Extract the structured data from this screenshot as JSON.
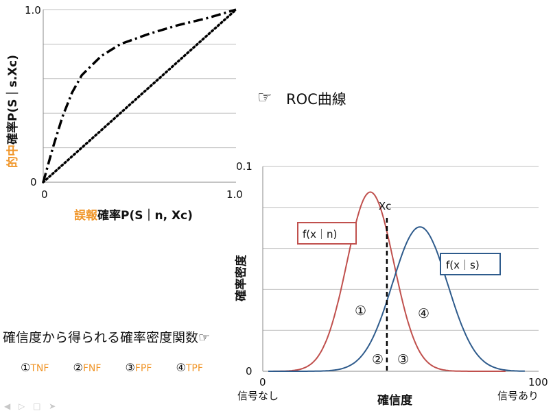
{
  "chart_data": [
    {
      "type": "line",
      "xlim": [
        0,
        1.0
      ],
      "ylim": [
        0,
        1.0
      ],
      "x_ticks": [
        "0",
        "1.0"
      ],
      "y_ticks": [
        "0",
        "1.0"
      ],
      "grid": "horizontal",
      "xlabel_prefix": "誤報",
      "xlabel_rest": "確率P(S｜n, Xc)",
      "ylabel_prefix": "的中",
      "ylabel_rest": "確率P(S｜s.Xc)",
      "series": [
        {
          "style": "dash-dot",
          "color": "#000000",
          "x": [
            0,
            0.05,
            0.1,
            0.15,
            0.2,
            0.3,
            0.4,
            0.55,
            0.7,
            0.85,
            1.0
          ],
          "y": [
            0,
            0.2,
            0.38,
            0.52,
            0.62,
            0.73,
            0.8,
            0.86,
            0.91,
            0.95,
            1.0
          ]
        },
        {
          "style": "dotted",
          "color": "#000000",
          "x": [
            0,
            1.0
          ],
          "y": [
            0,
            1.0
          ]
        }
      ]
    },
    {
      "type": "line",
      "xlim": [
        0,
        100
      ],
      "ylim": [
        0,
        0.1
      ],
      "x_ticks": [
        "0",
        "100"
      ],
      "y_ticks": [
        "0",
        "0.1"
      ],
      "grid": "horizontal",
      "xlabel": "確信度",
      "ylabel": "確率密度",
      "x_left_label": "信号なし",
      "x_right_label": "信号あり",
      "threshold": {
        "label": "Xc",
        "x": 45
      },
      "series": [
        {
          "name": "f(x｜n)",
          "color": "#c0504d",
          "mean": 39,
          "sd": 8.5,
          "peak": 0.0875,
          "x_range": [
            2,
            88
          ]
        },
        {
          "name": "f(x｜s)",
          "color": "#2e5b8c",
          "mean": 57,
          "sd": 10,
          "peak": 0.0705,
          "x_range": [
            2,
            95
          ]
        }
      ],
      "region_labels": [
        "①",
        "②",
        "③",
        "④"
      ]
    }
  ],
  "roc_title": "ROC曲線",
  "roc_hand_icon": "pointing-hand-icon",
  "pdf_caption": "確信度から得られる確率密度関数",
  "pdf_hand_icon": "☞",
  "legend": [
    {
      "mark": "①",
      "abbr": "TNF"
    },
    {
      "mark": "②",
      "abbr": "FNF"
    },
    {
      "mark": "③",
      "abbr": "FPF"
    },
    {
      "mark": "④",
      "abbr": "TPF"
    }
  ],
  "colors": {
    "accent": "#f0962a",
    "noise": "#c0504d",
    "signal": "#2e5b8c",
    "grid": "#bfbfbf"
  }
}
